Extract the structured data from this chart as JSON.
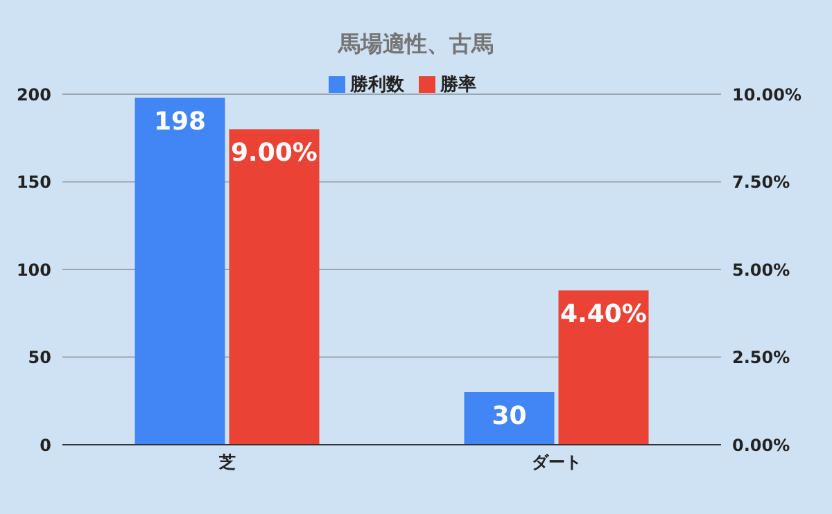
{
  "chart_data": {
    "type": "bar",
    "title": "馬場適性、古馬",
    "categories": [
      "芝",
      "ダート"
    ],
    "series": [
      {
        "name": "勝利数",
        "color": "#4285f4",
        "values": [
          198,
          30
        ],
        "value_labels": [
          "198",
          "30"
        ]
      },
      {
        "name": "勝率",
        "color": "#ea4335",
        "values": [
          9.0,
          4.4
        ],
        "axis": "y2",
        "value_labels": [
          "9.00%",
          "4.40%"
        ]
      }
    ],
    "ylim": [
      0,
      200
    ],
    "yticks": [
      0,
      50,
      100,
      150,
      200
    ],
    "y2lim": [
      0,
      10
    ],
    "y2ticks": [
      {
        "value": 0,
        "label": "0.00%"
      },
      {
        "value": 2.5,
        "label": "2.50%"
      },
      {
        "value": 5,
        "label": "5.00%"
      },
      {
        "value": 7.5,
        "label": "7.50%"
      },
      {
        "value": 10,
        "label": "10.00%"
      }
    ],
    "grid": "y",
    "legend": "top"
  }
}
